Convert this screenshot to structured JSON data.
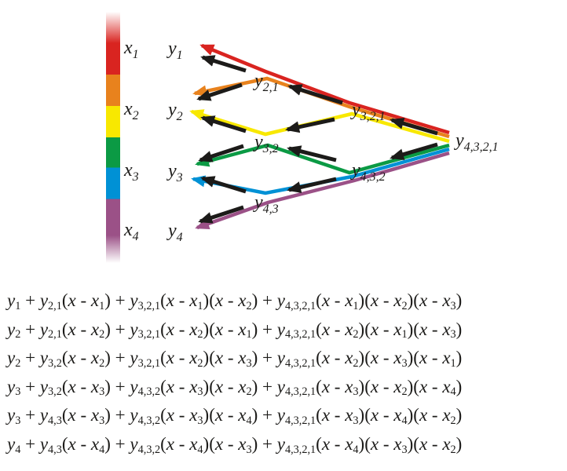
{
  "colors": {
    "red": "#d92420",
    "orange": "#e8821d",
    "yellow": "#f8e800",
    "green": "#0b9a44",
    "blue": "#0091d5",
    "purple": "#9b5187",
    "ink": "#1c1b19"
  },
  "diagram": {
    "x_labels": [
      "x{1}",
      "x{2}",
      "x{3}",
      "x{4}"
    ],
    "leaf_labels": [
      "y{1}",
      "y{2}",
      "y{3}",
      "y{4}"
    ],
    "level1_labels": [
      "y{2,1}",
      "y{3,2}",
      "y{4,3}"
    ],
    "level2_labels": [
      "y{3,2,1}",
      "y{4,3,2}"
    ],
    "root_label": "y{4,3,2,1}"
  },
  "formulas": [
    "y{1} + y{2,1}(x - x{1}) + y{3,2,1}(x - x{1})(x - x{2}) + y{4,3,2,1}(x - x{1})(x - x{2})(x - x{3})",
    "y{2} + y{2,1}(x - x{2}) + y{3,2,1}(x - x{2})(x - x{1}) + y{4,3,2,1}(x - x{2})(x - x{1})(x - x{3})",
    "y{2} + y{3,2}(x - x{2}) + y{3,2,1}(x - x{2})(x - x{3}) + y{4,3,2,1}(x - x{2})(x - x{3})(x - x{1})",
    "y{3} + y{3,2}(x - x{3}) + y{4,3,2}(x - x{3})(x - x{2}) + y{4,3,2,1}(x - x{3})(x - x{2})(x - x{4})",
    "y{3} + y{4,3}(x - x{3}) + y{4,3,2}(x - x{3})(x - x{4}) + y{4,3,2,1}(x - x{3})(x - x{4})(x - x{2})",
    "y{4} + y{4,3}(x - x{4}) + y{4,3,2}(x - x{4})(x - x{3}) + y{4,3,2,1}(x - x{4})(x - x{3})(x - x{2})"
  ]
}
